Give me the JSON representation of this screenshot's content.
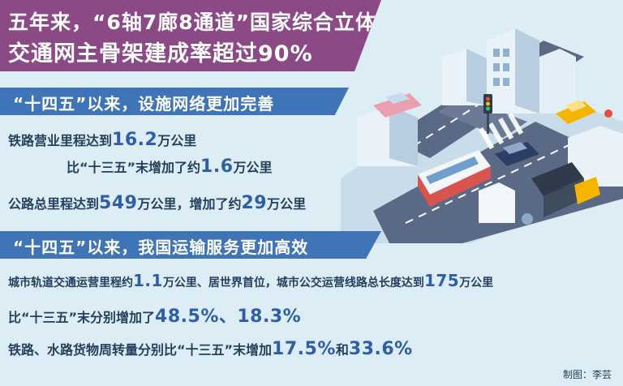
{
  "title": {
    "line1": "五年来，“6轴7廊8通道”国家综合立体",
    "line2": "交通网主骨架建成率超过90%"
  },
  "section1": {
    "header": "“十四五”以来，设施网络更加完善",
    "rows": [
      {
        "pre": "铁路营业里程达到",
        "big": "16.2",
        "post": "万公里"
      },
      {
        "pre": "比“十三五”末增加了约",
        "big": "1.6",
        "post": "万公里"
      },
      {
        "pre": "公路总里程达到",
        "big": "549",
        "post": "万公里，增加了约",
        "big2": "29",
        "post2": "万公里"
      }
    ]
  },
  "section2": {
    "header": "“十四五”以来，我国运输服务更加高效",
    "rows": [
      {
        "pre": "城市轨道交通运营里程约",
        "big": "1.1",
        "post": "万公里、居世界首位，城市公交运营线路总长度达到",
        "big2": "175",
        "post2": "万公里"
      },
      {
        "pre": "比“十三五”末分别增加了",
        "big": "48.5%、18.3%",
        "post": ""
      },
      {
        "pre": "铁路、水路货物周转量分别比“十三五”末增加",
        "big": "17.5%",
        "post": "和",
        "big2": "33.6%",
        "post2": ""
      }
    ]
  },
  "credit": "制图：李芸",
  "colors": {
    "title_bg": "#8b4a86",
    "section_bg": "#3f74b6",
    "highlight": "#2f5ea8",
    "background": "#dcedf5"
  }
}
